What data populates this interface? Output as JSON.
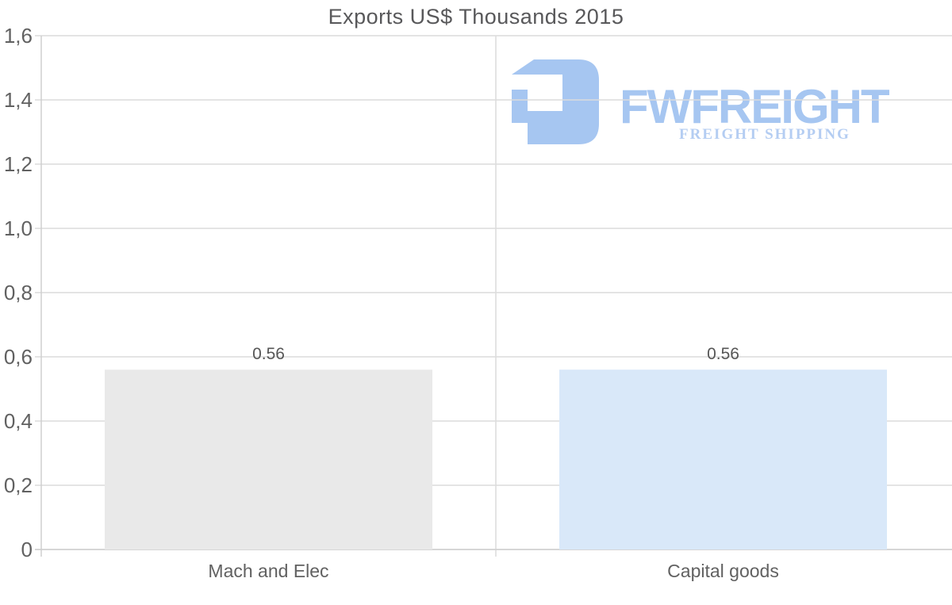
{
  "title": "Exports US$ Thousands 2015",
  "logo": {
    "name": "FWFREIGHT",
    "tagline": "FREIGHT SHIPPING",
    "name_color": "#a6c6f1",
    "tagline_color": "#b4cdf2",
    "icon_color": "#a6c6f1"
  },
  "chart_data": {
    "type": "bar",
    "title": "Exports US$ Thousands 2015",
    "categories": [
      "Mach and Elec",
      "Capital goods"
    ],
    "values": [
      0.56,
      0.56
    ],
    "value_labels": [
      "0.56",
      "0.56"
    ],
    "bar_colors": [
      "#e9e9e9",
      "#d9e8f9"
    ],
    "xlabel": "",
    "ylabel": "",
    "ylim": [
      0,
      1.6
    ],
    "ytick_step": 0.2,
    "ytick_labels": [
      "0",
      "0,2",
      "0,4",
      "0,6",
      "0,8",
      "1,0",
      "1,2",
      "1,4",
      "1,6"
    ],
    "grid": true,
    "legend": "none",
    "colors": {
      "grid": "#dcdcdc",
      "axis": "#cfcfcf",
      "tick_text": "#616161",
      "value_text": "#565656",
      "category_text": "#616161"
    }
  }
}
